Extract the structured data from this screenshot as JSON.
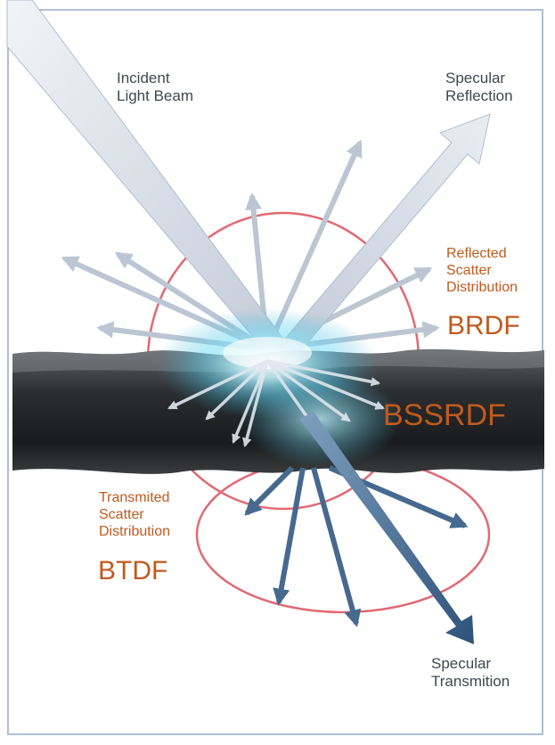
{
  "labels": {
    "incident": [
      "Incident",
      "Light Beam"
    ],
    "specular_reflection": [
      "Specular",
      "Reflection"
    ],
    "reflected_scatter": [
      "Reflected",
      "Scatter",
      "Distribution"
    ],
    "brdf": "BRDF",
    "bssrdf": "BSSRDF",
    "transmitted_scatter": [
      "Transmited",
      "Scatter",
      "Distribution"
    ],
    "btdf": "BTDF",
    "specular_transmission": [
      "Specular",
      "Transmition"
    ]
  },
  "colors": {
    "label_grey": "#3f4750",
    "label_orange": "#c05a1e",
    "circle_red": "#e06a73",
    "arrow_light": "#c9d1dc",
    "arrow_dark": "#3d6289",
    "glow": "#7fe6ff",
    "frame": "#aebfd6"
  }
}
